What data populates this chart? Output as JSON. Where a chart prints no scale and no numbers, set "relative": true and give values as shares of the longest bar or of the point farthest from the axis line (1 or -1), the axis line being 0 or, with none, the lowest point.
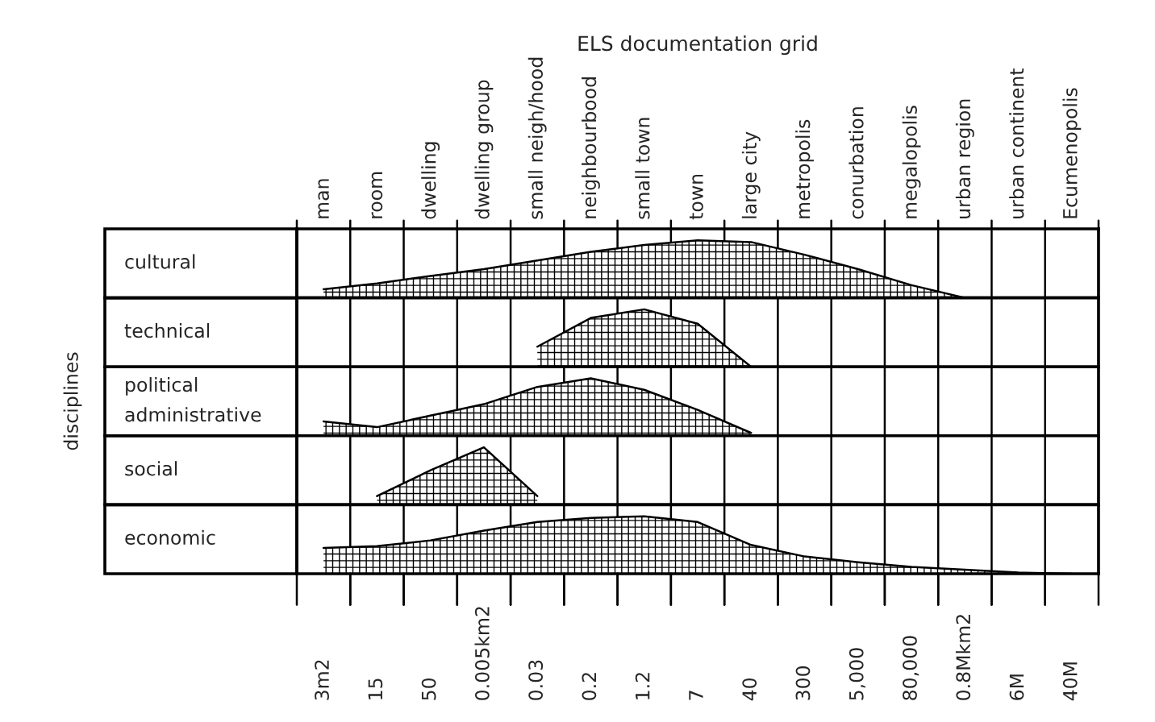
{
  "chart_data": [
    {
      "type": "area",
      "title": "ELS documentation grid",
      "ylabel": "cultural",
      "relative": true,
      "tick_labels": "x",
      "grid": "x",
      "categories": [
        "man",
        "room",
        "dwelling",
        "dwelling group",
        "small neigh/hood",
        "neighbourbood",
        "small town",
        "town",
        "large city",
        "metropolis",
        "conurbation",
        "megalopolis",
        "urban region",
        "urban continent",
        "Ecumenopolis"
      ],
      "series": [
        {
          "color": "#000000",
          "values": [
            0.15,
            0.25,
            0.38,
            0.5,
            0.65,
            0.8,
            0.92,
            1.0,
            0.97,
            0.75,
            0.5,
            0.22,
            0,
            null,
            null
          ]
        }
      ]
    },
    {
      "type": "area",
      "ylabel": "technical",
      "relative": true,
      "tick_labels": false,
      "grid": "x",
      "categories": [
        null,
        null,
        null,
        null,
        null,
        null,
        null,
        null,
        null,
        null,
        null,
        null,
        null,
        null,
        null
      ],
      "series": [
        {
          "color": "#000000",
          "values": [
            null,
            null,
            null,
            null,
            0.35,
            0.85,
            1.0,
            0.75,
            0,
            null,
            null,
            null,
            null,
            null,
            null
          ]
        }
      ]
    },
    {
      "type": "area",
      "ylabel": "political\nadministrative",
      "relative": true,
      "tick_labels": false,
      "grid": "x",
      "annotations": [
        "disciplines"
      ],
      "categories": [
        null,
        null,
        null,
        null,
        null,
        null,
        null,
        null,
        null,
        null,
        null,
        null,
        null,
        null,
        null
      ],
      "series": [
        {
          "color": "#000000",
          "values": [
            0.25,
            0.15,
            0.35,
            0.55,
            0.85,
            1.0,
            0.8,
            0.45,
            0.05,
            null,
            null,
            null,
            null,
            null,
            null
          ]
        }
      ]
    },
    {
      "type": "area",
      "ylabel": "social",
      "relative": true,
      "tick_labels": false,
      "grid": "x",
      "categories": [
        null,
        null,
        null,
        null,
        null,
        null,
        null,
        null,
        null,
        null,
        null,
        null,
        null,
        null,
        null
      ],
      "series": [
        {
          "color": "#000000",
          "values": [
            null,
            0.15,
            0.6,
            1.0,
            0.15,
            null,
            null,
            null,
            null,
            null,
            null,
            null,
            null,
            null,
            null
          ]
        }
      ]
    },
    {
      "type": "area",
      "ylabel": "economic",
      "relative": true,
      "tick_labels": false,
      "grid": "x",
      "categories": [
        null,
        null,
        null,
        null,
        null,
        null,
        null,
        null,
        null,
        null,
        null,
        null,
        null,
        null,
        null
      ],
      "series": [
        {
          "color": "#000000",
          "values": [
            0.45,
            0.48,
            0.58,
            0.75,
            0.9,
            0.97,
            1.0,
            0.9,
            0.5,
            0.3,
            0.2,
            0.12,
            0.07,
            0.02,
            0
          ]
        }
      ],
      "annotations": [
        "3m2",
        "15",
        "50",
        "0.005km2",
        "0.03",
        "0.2",
        "1.2",
        "7",
        "40",
        "300",
        "5,000",
        "80,000",
        "0.8Mkm2",
        "6M",
        "40M"
      ]
    }
  ]
}
